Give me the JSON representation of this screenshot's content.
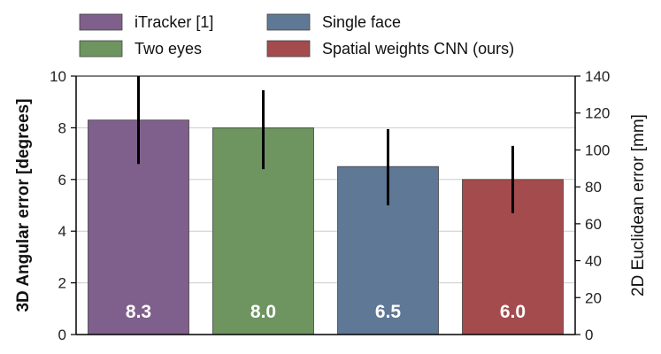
{
  "chart_data": {
    "type": "bar",
    "categories": [
      "iTracker [1]",
      "Two eyes",
      "Single face",
      "Spatial weights CNN (ours)"
    ],
    "values": [
      8.3,
      8.0,
      6.5,
      6.0
    ],
    "value_labels": [
      "8.3",
      "8.0",
      "6.5",
      "6.0"
    ],
    "error_low": [
      6.6,
      6.4,
      5.0,
      4.7
    ],
    "error_high": [
      10.0,
      9.45,
      7.95,
      7.3
    ],
    "colors": [
      "#7f5f8b",
      "#6e9460",
      "#5e7896",
      "#a44b4d"
    ],
    "ylabel": "3D Angular error [degrees]",
    "ylim": [
      0,
      10
    ],
    "yticks": [
      0,
      2,
      4,
      6,
      8,
      10
    ],
    "y2label": "2D Euclidean error [mm]",
    "y2lim": [
      0,
      140
    ],
    "y2ticks": [
      0,
      20,
      40,
      60,
      80,
      100,
      120,
      140
    ],
    "grid": true,
    "legend_position": "top"
  }
}
